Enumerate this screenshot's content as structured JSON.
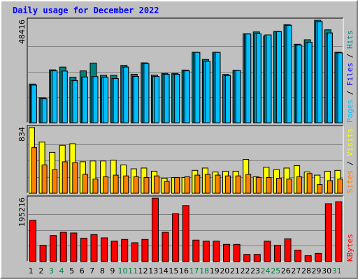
{
  "chart_data": {
    "type": "bar",
    "title": "Daily usage for December 2022",
    "categories": [
      "1",
      "2",
      "3",
      "4",
      "5",
      "6",
      "7",
      "8",
      "9",
      "10",
      "11",
      "12",
      "13",
      "14",
      "15",
      "16",
      "17",
      "18",
      "19",
      "20",
      "21",
      "22",
      "23",
      "24",
      "25",
      "26",
      "27",
      "28",
      "29",
      "30",
      "31"
    ],
    "weekend_days": [
      "3",
      "4",
      "10",
      "11",
      "17",
      "18",
      "24",
      "25",
      "31"
    ],
    "colors": {
      "background": "#c0c0c0",
      "plot": "#c0c0c0",
      "title": "#0000ff",
      "hits": "#008080",
      "files": "#00bfff",
      "pages": "#00bfff",
      "visits": "#ffff00",
      "sites": "#ff8000",
      "kbytes": "#ff0000",
      "weekday_label": "#000000",
      "weekend_label": "#008040",
      "slash": "#000000"
    },
    "panels": [
      {
        "id": "hits-files-pages",
        "ymax_label": "48416",
        "ylim": [
          0,
          48416
        ],
        "legend": [
          {
            "text": "Pages",
            "color": "#00bfff"
          },
          {
            "text": " / ",
            "color": "#000000"
          },
          {
            "text": "Files",
            "color": "#0000ff"
          },
          {
            "text": " / ",
            "color": "#000000"
          },
          {
            "text": "Hits",
            "color": "#008080"
          }
        ],
        "series": [
          {
            "name": "Hits",
            "values": [
              18300,
              11800,
              25000,
              26300,
              21500,
              24500,
              28200,
              22400,
              22400,
              27100,
              22900,
              28300,
              22500,
              23300,
              23300,
              24900,
              33300,
              29900,
              33300,
              22800,
              24800,
              42000,
              42900,
              41000,
              43100,
              46300,
              37100,
              39200,
              48400,
              43900,
              33300
            ]
          },
          {
            "name": "Files",
            "values": [
              17800,
              11300,
              24500,
              24400,
              19900,
              21600,
              21800,
              21400,
              20900,
              26300,
              21900,
              28000,
              21900,
              22900,
              22900,
              24500,
              33200,
              29000,
              33200,
              22300,
              24700,
              41900,
              42000,
              41500,
              43000,
              46000,
              36700,
              38000,
              47800,
              42400,
              33000
            ]
          },
          {
            "name": "Pages",
            "values": [
              17800,
              11300,
              24500,
              24400,
              19900,
              21600,
              21800,
              21400,
              20900,
              26300,
              21900,
              28000,
              21900,
              22900,
              22900,
              24500,
              33200,
              29000,
              33200,
              22300,
              24700,
              41900,
              42000,
              41500,
              43000,
              46000,
              36700,
              38000,
              47800,
              42400,
              33000
            ]
          }
        ]
      },
      {
        "id": "visits-sites",
        "ymax_label": "834",
        "ylim": [
          0,
          834
        ],
        "legend": [
          {
            "text": "Sites",
            "color": "#ff8000"
          },
          {
            "text": " / ",
            "color": "#000000"
          },
          {
            "text": "Visits",
            "color": "#ffff00"
          }
        ],
        "series": [
          {
            "name": "Visits",
            "values": [
              834,
              650,
              520,
              610,
              630,
              400,
              410,
              410,
              420,
              360,
              310,
              320,
              280,
              190,
              200,
              200,
              290,
              320,
              270,
              280,
              280,
              430,
              210,
              330,
              300,
              320,
              350,
              270,
              230,
              280,
              290
            ]
          },
          {
            "name": "Sites",
            "values": [
              580,
              360,
              300,
              400,
              390,
              240,
              180,
              210,
              230,
              220,
              210,
              200,
              220,
              150,
              200,
              210,
              230,
              240,
              230,
              220,
              220,
              240,
              200,
              200,
              190,
              180,
              210,
              250,
              110,
              160,
              180
            ]
          }
        ]
      },
      {
        "id": "kbytes",
        "ymax_label": "195216",
        "ylim": [
          0,
          195216
        ],
        "legend": [
          {
            "text": "KBytes",
            "color": "#ff0000"
          }
        ],
        "series": [
          {
            "name": "KBytes",
            "values": [
              127000,
              50000,
              80000,
              90000,
              88000,
              72000,
              83000,
              73000,
              63000,
              68000,
              58000,
              68000,
              195000,
              90000,
              147000,
              172000,
              66000,
              63000,
              63000,
              53000,
              53000,
              22000,
              22000,
              63000,
              50000,
              70000,
              35000,
              18000,
              25000,
              178000,
              184000
            ]
          }
        ]
      }
    ]
  }
}
